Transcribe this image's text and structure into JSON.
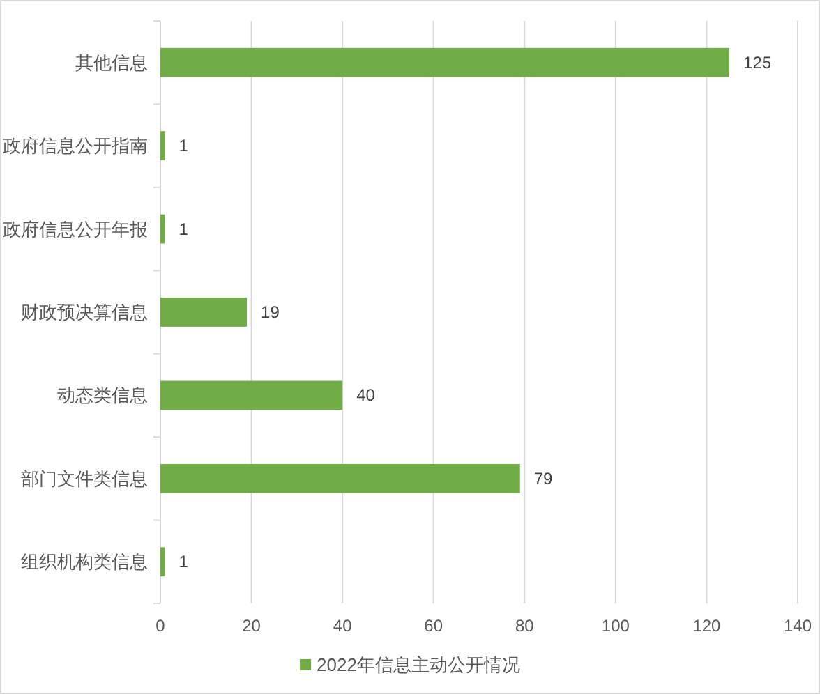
{
  "chart_data": {
    "type": "bar",
    "orientation": "horizontal",
    "categories": [
      "其他信息",
      "政府信息公开指南",
      "政府信息公开年报",
      "财政预决算信息",
      "动态类信息",
      "部门文件类信息",
      "组织机构类信息"
    ],
    "series": [
      {
        "name": "2022年信息主动公开情况",
        "color": "#70ad47",
        "values": [
          125,
          1,
          1,
          19,
          40,
          79,
          1
        ]
      }
    ],
    "xlim": [
      0,
      140
    ],
    "xticks": [
      0,
      20,
      40,
      60,
      80,
      100,
      120,
      140
    ],
    "grid": "x",
    "legend": "bottom",
    "data_labels": true
  }
}
